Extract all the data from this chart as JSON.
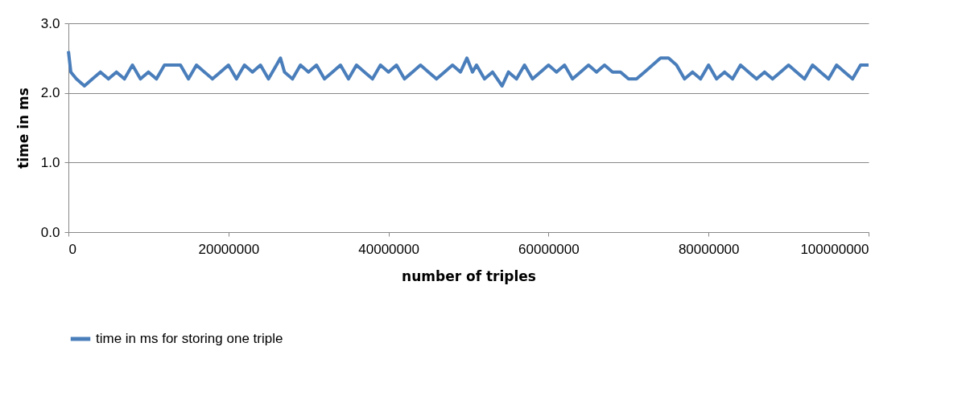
{
  "chart_data": {
    "type": "line",
    "xlabel": "number of triples",
    "ylabel": "time in ms",
    "x": [
      0,
      300000,
      1000000,
      2000000,
      3000000,
      4000000,
      5000000,
      6000000,
      7000000,
      8000000,
      9000000,
      10000000,
      11000000,
      12000000,
      13000000,
      14000000,
      15000000,
      16000000,
      17000000,
      18000000,
      19000000,
      20000000,
      21000000,
      22000000,
      23000000,
      24000000,
      25000000,
      26000000,
      26500000,
      27000000,
      28000000,
      29000000,
      30000000,
      31000000,
      32000000,
      33000000,
      34000000,
      35000000,
      36000000,
      37000000,
      38000000,
      39000000,
      40000000,
      41000000,
      42000000,
      43000000,
      44000000,
      45000000,
      46000000,
      47000000,
      48000000,
      49000000,
      49800000,
      50500000,
      51000000,
      52000000,
      53000000,
      54200000,
      55000000,
      56000000,
      57000000,
      58000000,
      59000000,
      60000000,
      61000000,
      62000000,
      63000000,
      64000000,
      65000000,
      66000000,
      67000000,
      68000000,
      69000000,
      70000000,
      71000000,
      72000000,
      73000000,
      74000000,
      75000000,
      76000000,
      77000000,
      78000000,
      79000000,
      80000000,
      81000000,
      82000000,
      83000000,
      84000000,
      85000000,
      86000000,
      87000000,
      88000000,
      89000000,
      90000000,
      91000000,
      92000000,
      93000000,
      94000000,
      95000000,
      96000000,
      97000000,
      98000000,
      99000000,
      100000000
    ],
    "series": [
      {
        "name": "time in ms for storing one triple",
        "color": "#4a7ebb",
        "values": [
          2.6,
          2.3,
          2.2,
          2.1,
          2.2,
          2.3,
          2.2,
          2.3,
          2.2,
          2.4,
          2.2,
          2.3,
          2.2,
          2.4,
          2.4,
          2.4,
          2.2,
          2.4,
          2.3,
          2.2,
          2.3,
          2.4,
          2.2,
          2.4,
          2.3,
          2.4,
          2.2,
          2.4,
          2.5,
          2.3,
          2.2,
          2.4,
          2.3,
          2.4,
          2.2,
          2.3,
          2.4,
          2.2,
          2.4,
          2.3,
          2.2,
          2.4,
          2.3,
          2.4,
          2.2,
          2.3,
          2.4,
          2.3,
          2.2,
          2.3,
          2.4,
          2.3,
          2.5,
          2.3,
          2.4,
          2.2,
          2.3,
          2.1,
          2.3,
          2.2,
          2.4,
          2.2,
          2.3,
          2.4,
          2.3,
          2.4,
          2.2,
          2.3,
          2.4,
          2.3,
          2.4,
          2.3,
          2.3,
          2.2,
          2.2,
          2.3,
          2.4,
          2.5,
          2.5,
          2.4,
          2.2,
          2.3,
          2.2,
          2.4,
          2.2,
          2.3,
          2.2,
          2.4,
          2.3,
          2.2,
          2.3,
          2.2,
          2.3,
          2.4,
          2.3,
          2.2,
          2.4,
          2.3,
          2.2,
          2.4,
          2.3,
          2.2,
          2.4,
          2.4
        ]
      }
    ],
    "xlim": [
      0,
      100000000
    ],
    "xticks": [
      0,
      20000000,
      40000000,
      60000000,
      80000000,
      100000000
    ],
    "ylim": [
      0,
      3
    ],
    "yticks": [
      {
        "value": 0,
        "label": "0.0"
      },
      {
        "value": 1,
        "label": "1.0"
      },
      {
        "value": 2,
        "label": "2.0"
      },
      {
        "value": 3,
        "label": "3.0"
      }
    ],
    "grid": "y",
    "legend": "bottom",
    "line_style": "solid",
    "marker": "none"
  }
}
